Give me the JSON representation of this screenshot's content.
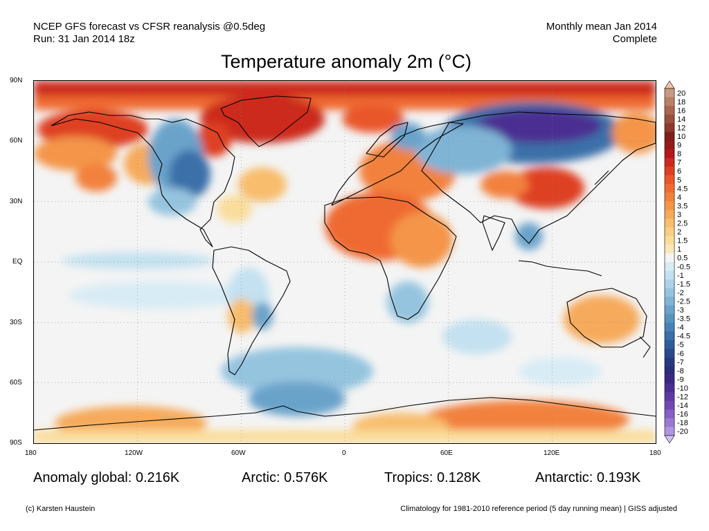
{
  "header": {
    "line1_left": "NCEP GFS forecast vs CFSR reanalysis @0.5deg",
    "line2_left": "Run: 31 Jan 2014 18z",
    "line1_right": "Monthly mean Jan 2014",
    "line2_right": "Complete"
  },
  "title": "Temperature anomaly 2m (°C)",
  "axes": {
    "lat_labels": [
      "90N",
      "60N",
      "30N",
      "EQ",
      "30S",
      "60S",
      "90S"
    ],
    "lon_labels": [
      "180",
      "120W",
      "60W",
      "0",
      "60E",
      "120E",
      "180"
    ]
  },
  "stats": {
    "global": "Anomaly global: 0.216K",
    "arctic": "Arctic: 0.576K",
    "tropics": "Tropics: 0.128K",
    "antarctic": "Antarctic: 0.193K"
  },
  "footer": {
    "left": "(c) Karsten Haustein",
    "right": "Climatology for 1981-2010 reference period (5 day running mean) | GISS adjusted"
  },
  "colorbar": {
    "labels": [
      "20",
      "18",
      "16",
      "14",
      "12",
      "10",
      "9",
      "8",
      "7",
      "6",
      "5",
      "4.5",
      "4",
      "3.5",
      "3",
      "2.5",
      "2",
      "1.5",
      "1",
      "0.5",
      "-0.5",
      "-1",
      "-1.5",
      "-2",
      "-2.5",
      "-3",
      "-3.5",
      "-4",
      "-4.5",
      "-5",
      "-6",
      "-7",
      "-8",
      "-9",
      "-10",
      "-12",
      "-14",
      "-16",
      "-18",
      "-20"
    ],
    "colors": [
      "#c79a86",
      "#b98066",
      "#a96650",
      "#99503c",
      "#8c3a2c",
      "#7e1f1c",
      "#951a1a",
      "#b4171c",
      "#cc2a1f",
      "#de3f24",
      "#e9572b",
      "#ef6b32",
      "#f2813d",
      "#f4954a",
      "#f6aa5b",
      "#f8bd6d",
      "#f9ce83",
      "#fadd9b",
      "#fbe8b6",
      "#f4f4f4",
      "#d8ecf6",
      "#c3e1f0",
      "#acd3e8",
      "#95c4df",
      "#7fb4d5",
      "#6aa3ca",
      "#5893c0",
      "#4882b6",
      "#3a6fa8",
      "#2f5d9a",
      "#284a8c",
      "#253a80",
      "#2c2d78",
      "#3b2882",
      "#4c2f92",
      "#5f3aa4",
      "#7249b4",
      "#8660c4",
      "#9b78d2",
      "#b094df"
    ],
    "top_arrow_color": "#f2c2a8",
    "bottom_arrow_color": "#d2c2f2"
  }
}
